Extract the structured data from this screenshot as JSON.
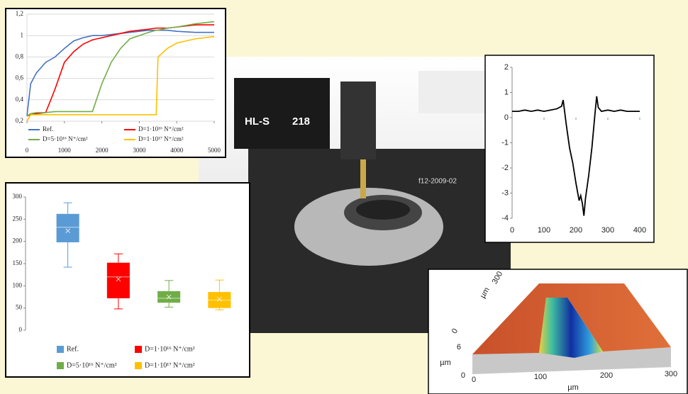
{
  "chart_data": [
    {
      "type": "line",
      "x": [
        0,
        100,
        250,
        500,
        750,
        1000,
        1250,
        1500,
        1750,
        2000,
        2250,
        2500,
        2750,
        3000,
        3250,
        3450,
        3500,
        3750,
        4000,
        4500,
        5000
      ],
      "series": [
        {
          "name": "Ref.",
          "color": "#4472c4",
          "values": [
            0.25,
            0.55,
            0.65,
            0.75,
            0.8,
            0.88,
            0.95,
            0.98,
            1.0,
            1.0,
            1.01,
            1.02,
            1.03,
            1.04,
            1.05,
            1.05,
            1.05,
            1.05,
            1.04,
            1.03,
            1.03
          ]
        },
        {
          "name": "D=1·10¹⁶ N⁺/cm²",
          "color": "#ff0000",
          "values": [
            0.25,
            0.26,
            0.27,
            0.28,
            0.5,
            0.75,
            0.85,
            0.92,
            0.96,
            0.98,
            1.0,
            1.02,
            1.04,
            1.05,
            1.06,
            1.07,
            1.07,
            1.07,
            1.08,
            1.1,
            1.1
          ]
        },
        {
          "name": "D=5·10¹⁶ N⁺/cm²",
          "color": "#70ad47",
          "values": [
            0.25,
            0.27,
            0.28,
            0.28,
            0.29,
            0.29,
            0.29,
            0.29,
            0.29,
            0.55,
            0.75,
            0.88,
            0.97,
            1.0,
            1.03,
            1.05,
            1.05,
            1.07,
            1.08,
            1.11,
            1.13
          ]
        },
        {
          "name": "D=1·10¹⁷ N⁺/cm²",
          "color": "#ffc000",
          "values": [
            0.2,
            0.26,
            0.26,
            0.26,
            0.26,
            0.26,
            0.26,
            0.26,
            0.26,
            0.26,
            0.26,
            0.26,
            0.26,
            0.26,
            0.26,
            0.26,
            0.8,
            0.88,
            0.93,
            0.97,
            0.99
          ]
        }
      ],
      "xlim": [
        0,
        5000
      ],
      "xticks": [
        0,
        1000,
        2000,
        3000,
        4000,
        5000
      ],
      "ylim": [
        0.2,
        1.2
      ],
      "yticks": [
        {
          "value": 0.2,
          "label": "0,2"
        },
        {
          "value": 0.4,
          "label": "0,4"
        },
        {
          "value": 0.6,
          "label": "0,6"
        },
        {
          "value": 0.8,
          "label": "0,8"
        },
        1,
        {
          "value": 1.2,
          "label": "1,2"
        }
      ],
      "grid": true
    },
    {
      "type": "box",
      "categories": [
        "Ref.",
        "D=1·10¹⁶ N⁺/cm²",
        "D=5·10¹⁶ N⁺/cm²",
        "D=1·10¹⁷ N⁺/cm²"
      ],
      "series": [
        {
          "name": "Ref.",
          "color": "#5b9bd5",
          "min": 142,
          "q1": 198,
          "median": 232,
          "q3": 262,
          "max": 287,
          "mean": 224
        },
        {
          "name": "D=1·10¹⁶ N⁺/cm²",
          "color": "#ff0000",
          "min": 48,
          "q1": 72,
          "median": 120,
          "q3": 152,
          "max": 172,
          "mean": 115
        },
        {
          "name": "D=5·10¹⁶ N⁺/cm²",
          "color": "#70ad47",
          "min": 52,
          "q1": 62,
          "median": 72,
          "q3": 88,
          "max": 112,
          "mean": 75
        },
        {
          "name": "D=1·10¹⁷ N⁺/cm²",
          "color": "#ffc000",
          "min": 46,
          "q1": 50,
          "median": 68,
          "q3": 86,
          "max": 113,
          "mean": 70
        }
      ],
      "ylim": [
        0,
        300
      ],
      "yticks": [
        0,
        50,
        100,
        150,
        200,
        250,
        300
      ],
      "grid": false
    },
    {
      "type": "line",
      "x": [
        0,
        20,
        40,
        60,
        80,
        100,
        120,
        140,
        155,
        160,
        165,
        170,
        180,
        190,
        200,
        210,
        215,
        220,
        225,
        230,
        240,
        250,
        260,
        265,
        270,
        280,
        300,
        320,
        340,
        360,
        380,
        400
      ],
      "values": [
        0.25,
        0.25,
        0.3,
        0.25,
        0.3,
        0.25,
        0.3,
        0.35,
        0.45,
        0.7,
        0.2,
        -0.3,
        -1.2,
        -1.8,
        -2.6,
        -3.3,
        -3.1,
        -3.4,
        -3.9,
        -3.2,
        -2.3,
        -1.2,
        0.2,
        0.85,
        0.4,
        0.25,
        0.3,
        0.25,
        0.3,
        0.25,
        0.25,
        0.25
      ],
      "color": "#000000",
      "xlim": [
        0,
        400
      ],
      "xticks": [
        0,
        100,
        200,
        300,
        400
      ],
      "ylim": [
        -4,
        2
      ],
      "yticks": [
        -4,
        -3,
        -2,
        -1,
        0,
        1,
        2
      ],
      "grid": false
    }
  ],
  "photo": {
    "labels": [
      "HL-S",
      "218",
      "f12-2009-02"
    ]
  },
  "surface_image": {
    "x_ticks": [
      "0",
      "100",
      "200",
      "300"
    ],
    "x_unit": "µm",
    "y_tick": "300",
    "y_unit": "µm",
    "z_ticks": [
      "6",
      "0"
    ],
    "z_unit": "µm"
  }
}
